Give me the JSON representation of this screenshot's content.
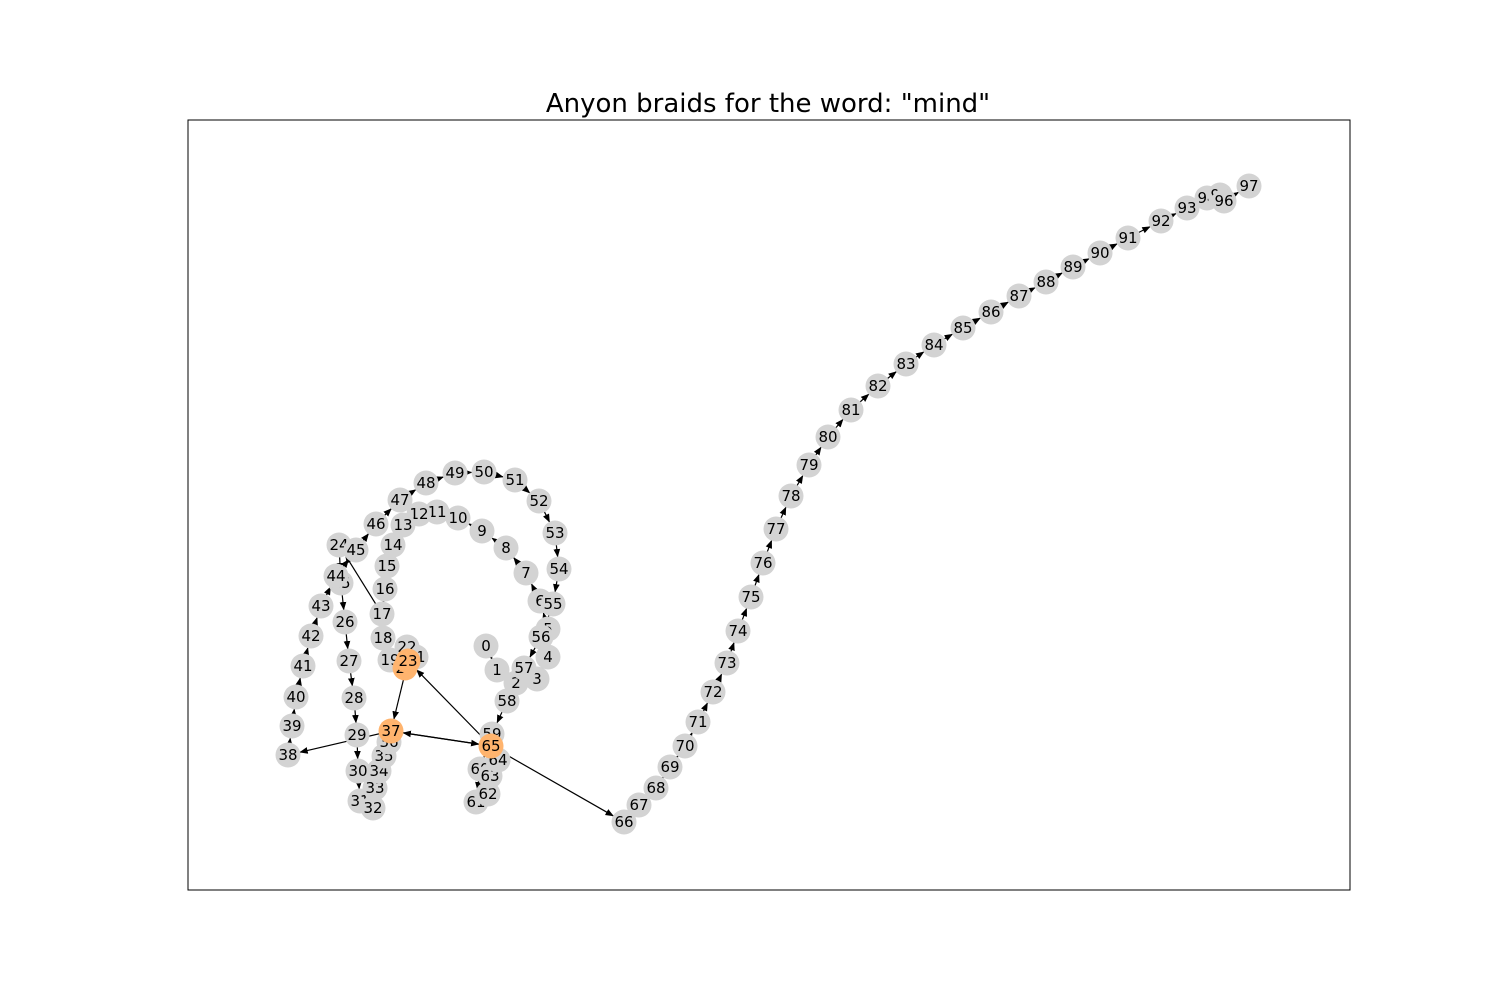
{
  "title": "Anyon braids for the word: \"mind\"",
  "colors": {
    "node_default": "#d3d3d3",
    "node_highlight": "#ffb46e",
    "edge": "#000000",
    "frame": "#000000",
    "background": "#ffffff"
  },
  "nodes": [
    {
      "id": "0"
    },
    {
      "id": "1"
    },
    {
      "id": "2"
    },
    {
      "id": "3"
    },
    {
      "id": "4"
    },
    {
      "id": "5"
    },
    {
      "id": "6"
    },
    {
      "id": "7"
    },
    {
      "id": "8"
    },
    {
      "id": "9"
    },
    {
      "id": "10"
    },
    {
      "id": "11"
    },
    {
      "id": "12"
    },
    {
      "id": "13"
    },
    {
      "id": "14"
    },
    {
      "id": "15"
    },
    {
      "id": "16"
    },
    {
      "id": "17"
    },
    {
      "id": "18"
    },
    {
      "id": "19"
    },
    {
      "id": "20",
      "highlight": true
    },
    {
      "id": "21"
    },
    {
      "id": "22"
    },
    {
      "id": "23",
      "highlight": true
    },
    {
      "id": "24"
    },
    {
      "id": "25"
    },
    {
      "id": "26"
    },
    {
      "id": "27"
    },
    {
      "id": "28"
    },
    {
      "id": "29"
    },
    {
      "id": "30"
    },
    {
      "id": "31"
    },
    {
      "id": "32"
    },
    {
      "id": "33"
    },
    {
      "id": "34"
    },
    {
      "id": "35"
    },
    {
      "id": "36"
    },
    {
      "id": "37",
      "highlight": true
    },
    {
      "id": "38"
    },
    {
      "id": "39"
    },
    {
      "id": "40"
    },
    {
      "id": "41"
    },
    {
      "id": "42"
    },
    {
      "id": "43"
    },
    {
      "id": "44"
    },
    {
      "id": "45"
    },
    {
      "id": "46"
    },
    {
      "id": "47"
    },
    {
      "id": "48"
    },
    {
      "id": "49"
    },
    {
      "id": "50"
    },
    {
      "id": "51"
    },
    {
      "id": "52"
    },
    {
      "id": "53"
    },
    {
      "id": "54"
    },
    {
      "id": "55"
    },
    {
      "id": "56"
    },
    {
      "id": "57"
    },
    {
      "id": "58"
    },
    {
      "id": "59"
    },
    {
      "id": "60"
    },
    {
      "id": "61"
    },
    {
      "id": "62"
    },
    {
      "id": "63"
    },
    {
      "id": "64"
    },
    {
      "id": "65",
      "highlight": true
    },
    {
      "id": "66"
    },
    {
      "id": "67"
    },
    {
      "id": "68"
    },
    {
      "id": "69"
    },
    {
      "id": "70"
    },
    {
      "id": "71"
    },
    {
      "id": "72"
    },
    {
      "id": "73"
    },
    {
      "id": "74"
    },
    {
      "id": "75"
    },
    {
      "id": "76"
    },
    {
      "id": "77"
    },
    {
      "id": "78"
    },
    {
      "id": "79"
    },
    {
      "id": "80"
    },
    {
      "id": "81"
    },
    {
      "id": "82"
    },
    {
      "id": "83"
    },
    {
      "id": "84"
    },
    {
      "id": "85"
    },
    {
      "id": "86"
    },
    {
      "id": "87"
    },
    {
      "id": "88"
    },
    {
      "id": "89"
    },
    {
      "id": "90"
    },
    {
      "id": "91"
    },
    {
      "id": "92"
    },
    {
      "id": "93"
    },
    {
      "id": "94"
    },
    {
      "id": "95"
    },
    {
      "id": "96"
    },
    {
      "id": "97"
    }
  ],
  "edges": [
    [
      "0",
      "1"
    ],
    [
      "1",
      "2"
    ],
    [
      "2",
      "3"
    ],
    [
      "3",
      "4"
    ],
    [
      "4",
      "5"
    ],
    [
      "5",
      "6"
    ],
    [
      "6",
      "7"
    ],
    [
      "7",
      "8"
    ],
    [
      "8",
      "9"
    ],
    [
      "9",
      "10"
    ],
    [
      "10",
      "11"
    ],
    [
      "11",
      "12"
    ],
    [
      "12",
      "13"
    ],
    [
      "13",
      "14"
    ],
    [
      "14",
      "15"
    ],
    [
      "15",
      "16"
    ],
    [
      "16",
      "17"
    ],
    [
      "17",
      "18"
    ],
    [
      "18",
      "19"
    ],
    [
      "19",
      "20"
    ],
    [
      "20",
      "21"
    ],
    [
      "21",
      "22"
    ],
    [
      "22",
      "23"
    ],
    [
      "17",
      "24"
    ],
    [
      "24",
      "25"
    ],
    [
      "25",
      "26"
    ],
    [
      "26",
      "27"
    ],
    [
      "27",
      "28"
    ],
    [
      "28",
      "29"
    ],
    [
      "29",
      "30"
    ],
    [
      "30",
      "31"
    ],
    [
      "31",
      "32"
    ],
    [
      "32",
      "33"
    ],
    [
      "33",
      "34"
    ],
    [
      "34",
      "35"
    ],
    [
      "35",
      "36"
    ],
    [
      "36",
      "37"
    ],
    [
      "37",
      "38"
    ],
    [
      "38",
      "39"
    ],
    [
      "39",
      "40"
    ],
    [
      "40",
      "41"
    ],
    [
      "41",
      "42"
    ],
    [
      "42",
      "43"
    ],
    [
      "43",
      "44"
    ],
    [
      "44",
      "45"
    ],
    [
      "45",
      "46"
    ],
    [
      "46",
      "47"
    ],
    [
      "47",
      "48"
    ],
    [
      "48",
      "49"
    ],
    [
      "49",
      "50"
    ],
    [
      "50",
      "51"
    ],
    [
      "51",
      "52"
    ],
    [
      "52",
      "53"
    ],
    [
      "53",
      "54"
    ],
    [
      "54",
      "55"
    ],
    [
      "55",
      "56"
    ],
    [
      "56",
      "57"
    ],
    [
      "57",
      "58"
    ],
    [
      "58",
      "59"
    ],
    [
      "59",
      "60"
    ],
    [
      "60",
      "61"
    ],
    [
      "61",
      "62"
    ],
    [
      "62",
      "63"
    ],
    [
      "63",
      "64"
    ],
    [
      "64",
      "65"
    ],
    [
      "65",
      "66"
    ],
    [
      "66",
      "67"
    ],
    [
      "67",
      "68"
    ],
    [
      "68",
      "69"
    ],
    [
      "69",
      "70"
    ],
    [
      "70",
      "71"
    ],
    [
      "71",
      "72"
    ],
    [
      "72",
      "73"
    ],
    [
      "73",
      "74"
    ],
    [
      "74",
      "75"
    ],
    [
      "75",
      "76"
    ],
    [
      "76",
      "77"
    ],
    [
      "77",
      "78"
    ],
    [
      "78",
      "79"
    ],
    [
      "79",
      "80"
    ],
    [
      "80",
      "81"
    ],
    [
      "81",
      "82"
    ],
    [
      "82",
      "83"
    ],
    [
      "83",
      "84"
    ],
    [
      "84",
      "85"
    ],
    [
      "85",
      "86"
    ],
    [
      "86",
      "87"
    ],
    [
      "87",
      "88"
    ],
    [
      "88",
      "89"
    ],
    [
      "89",
      "90"
    ],
    [
      "90",
      "91"
    ],
    [
      "91",
      "92"
    ],
    [
      "92",
      "93"
    ],
    [
      "93",
      "94"
    ],
    [
      "94",
      "95"
    ],
    [
      "95",
      "96"
    ],
    [
      "96",
      "97"
    ],
    [
      "23",
      "37"
    ],
    [
      "65",
      "23"
    ],
    [
      "65",
      "37"
    ],
    [
      "37",
      "65"
    ]
  ]
}
